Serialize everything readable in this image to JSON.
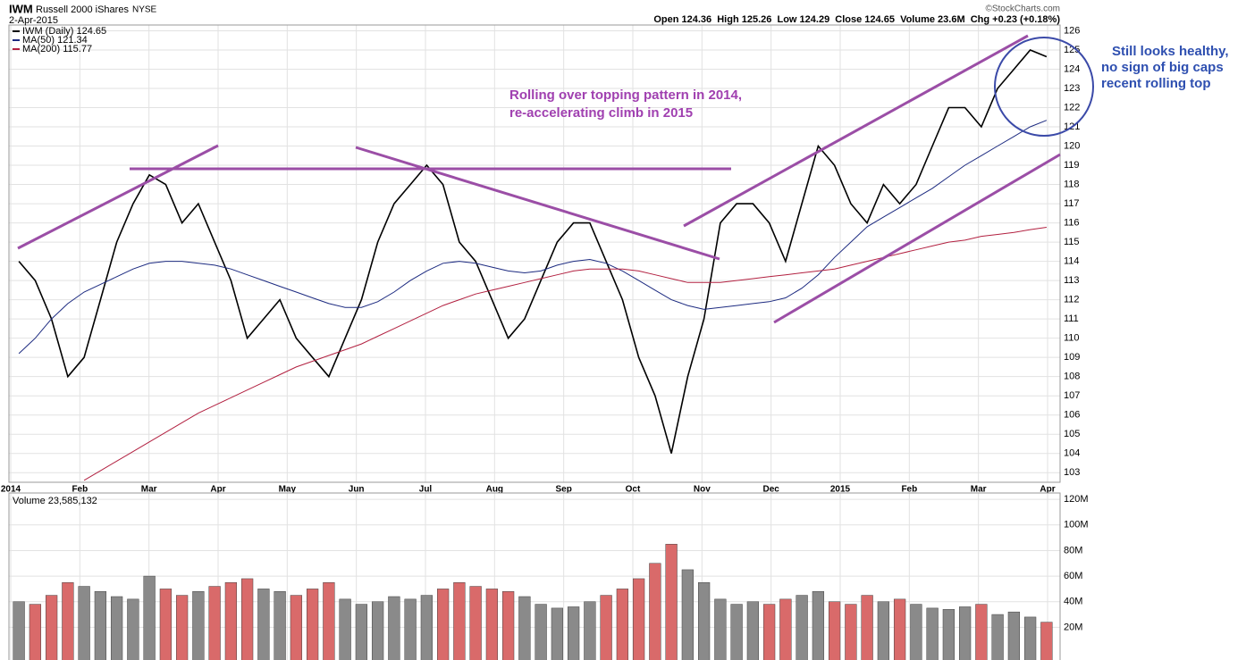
{
  "chart_data": {
    "type": "line",
    "symbol": "IWM",
    "title": "Russell 2000 iShares",
    "exchange": "NYSE",
    "date": "2-Apr-2015",
    "quote": "Open 124.36  High 125.26  Low 124.29  Close 124.65  Volume 23.6M  Chg +0.23 (+0.18%)",
    "source": "©StockCharts.com",
    "annotations": [
      "Rolling over topping pattern in 2014,",
      "re-accelerating climb in 2015",
      "Still looks healthy,",
      "no sign of big caps",
      "recent rolling top"
    ],
    "months": [
      "2014",
      "Feb",
      "Mar",
      "Apr",
      "May",
      "Jun",
      "Jul",
      "Aug",
      "Sep",
      "Oct",
      "Nov",
      "Dec",
      "2015",
      "Feb",
      "Mar",
      "Apr"
    ],
    "ylim": [
      102.5,
      126.3
    ],
    "yticks": [
      103,
      104,
      105,
      106,
      107,
      108,
      109,
      110,
      111,
      112,
      113,
      114,
      115,
      116,
      117,
      118,
      119,
      120,
      121,
      122,
      123,
      124,
      125,
      126
    ],
    "grid": true,
    "series": [
      {
        "name": "IWM (Daily) 124.65",
        "color": "#000000",
        "values": [
          114,
          113,
          111,
          108,
          109,
          112,
          115,
          117,
          118.5,
          118,
          116,
          117,
          115,
          113,
          110,
          111,
          112,
          110,
          109,
          108,
          110,
          112,
          115,
          117,
          118,
          119,
          118,
          115,
          114,
          112,
          110,
          111,
          113,
          115,
          116,
          116,
          114,
          112,
          109,
          107,
          104,
          108,
          111,
          116,
          117,
          117,
          116,
          114,
          117,
          120,
          119,
          117,
          116,
          118,
          117,
          118,
          120,
          122,
          122,
          121,
          123,
          124,
          125,
          124.65
        ]
      },
      {
        "name": "MA(50) 121.34",
        "color": "#1c2a80",
        "values": [
          109.2,
          110,
          111,
          111.8,
          112.4,
          112.8,
          113.2,
          113.6,
          113.9,
          114,
          114,
          113.9,
          113.8,
          113.6,
          113.3,
          113,
          112.7,
          112.4,
          112.1,
          111.8,
          111.6,
          111.6,
          111.9,
          112.4,
          113,
          113.5,
          113.9,
          114,
          113.9,
          113.7,
          113.5,
          113.4,
          113.5,
          113.8,
          114,
          114.1,
          113.9,
          113.5,
          113,
          112.5,
          112,
          111.7,
          111.5,
          111.6,
          111.7,
          111.8,
          111.9,
          112.1,
          112.6,
          113.3,
          114.2,
          115,
          115.8,
          116.3,
          116.8,
          117.3,
          117.8,
          118.4,
          119,
          119.5,
          120,
          120.5,
          121,
          121.34
        ]
      },
      {
        "name": "MA(200) 115.77",
        "color": "#b22040",
        "values": [
          null,
          null,
          null,
          null,
          102.6,
          103.1,
          103.6,
          104.1,
          104.6,
          105.1,
          105.6,
          106.1,
          106.5,
          106.9,
          107.3,
          107.7,
          108.1,
          108.5,
          108.8,
          109.1,
          109.4,
          109.7,
          110.1,
          110.5,
          110.9,
          111.3,
          111.7,
          112,
          112.3,
          112.5,
          112.7,
          112.9,
          113.1,
          113.3,
          113.5,
          113.6,
          113.6,
          113.6,
          113.5,
          113.3,
          113.1,
          112.9,
          112.9,
          112.9,
          113,
          113.1,
          113.2,
          113.3,
          113.4,
          113.5,
          113.6,
          113.8,
          114,
          114.2,
          114.4,
          114.6,
          114.8,
          115,
          115.1,
          115.3,
          115.4,
          115.5,
          115.65,
          115.77
        ]
      }
    ],
    "volume": {
      "name": "Volume 23,585,132",
      "ylim": [
        0,
        125
      ],
      "yticks": [
        {
          "value": 20,
          "label": "20M"
        },
        {
          "value": 40,
          "label": "40M"
        },
        {
          "value": 60,
          "label": "60M"
        },
        {
          "value": 80,
          "label": "80M"
        },
        {
          "value": 100,
          "label": "100M"
        },
        {
          "value": 120,
          "label": "120M"
        }
      ],
      "values": [
        40,
        38,
        45,
        55,
        52,
        48,
        44,
        42,
        60,
        50,
        45,
        48,
        52,
        55,
        58,
        50,
        48,
        45,
        50,
        55,
        42,
        38,
        40,
        44,
        42,
        45,
        50,
        55,
        52,
        50,
        48,
        44,
        38,
        35,
        36,
        40,
        45,
        50,
        58,
        70,
        85,
        65,
        55,
        42,
        38,
        40,
        38,
        42,
        45,
        48,
        40,
        38,
        45,
        40,
        42,
        38,
        35,
        34,
        36,
        38,
        30,
        32,
        28,
        24
      ]
    }
  }
}
